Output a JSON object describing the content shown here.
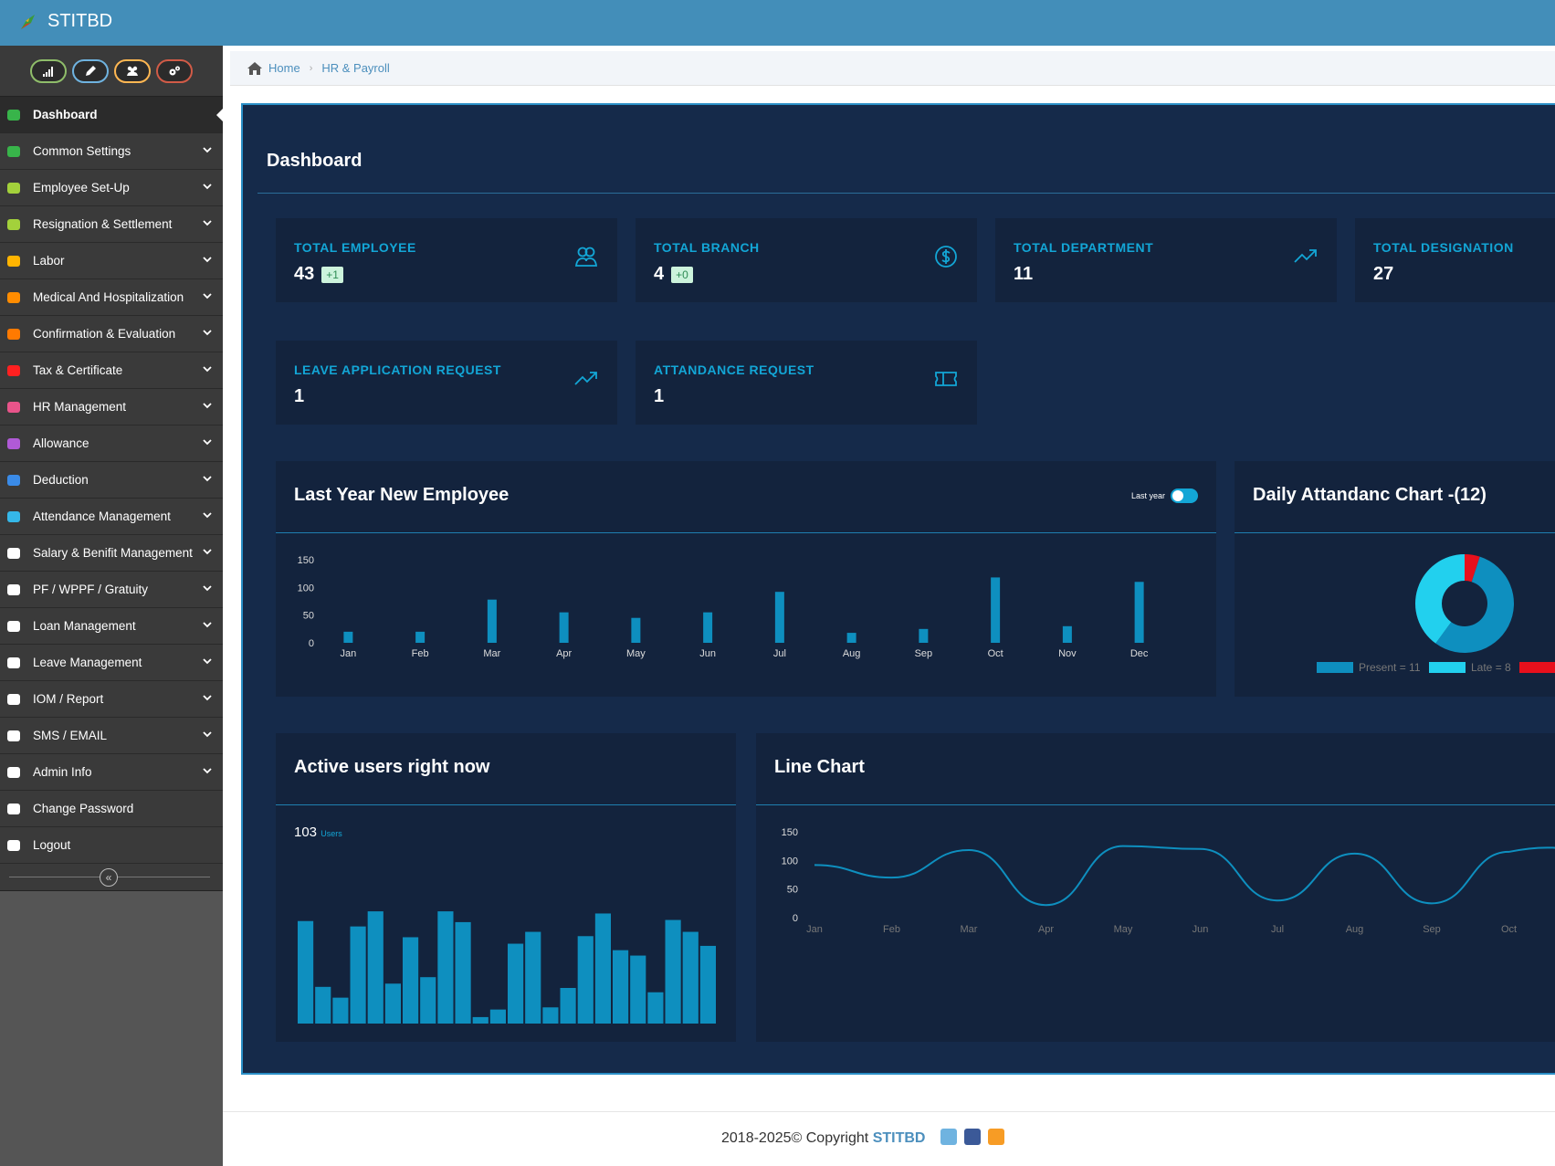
{
  "app": {
    "title": "STITBD"
  },
  "shortcuts": [
    {
      "icon": "signal-icon",
      "color": "#8fbd6a"
    },
    {
      "icon": "pencil-icon",
      "color": "#6fb3e0"
    },
    {
      "icon": "users-icon",
      "color": "#ffb752"
    },
    {
      "icon": "cogs-icon",
      "color": "#d15b47"
    }
  ],
  "sidebar": {
    "items": [
      {
        "label": "Dashboard",
        "icon": "tachometer-icon",
        "color": "#38b44a",
        "active": true,
        "has_caret": false
      },
      {
        "label": "Common Settings",
        "icon": "cogs-icon",
        "color": "#38b44a",
        "has_caret": true
      },
      {
        "label": "Employee Set-Up",
        "icon": "users-icon",
        "color": "#a3d13b",
        "has_caret": true
      },
      {
        "label": "Resignation & Settlement",
        "icon": "users-icon",
        "color": "#a3d13b",
        "has_caret": true
      },
      {
        "label": "Labor",
        "icon": "users-icon",
        "color": "#ffb400",
        "has_caret": true
      },
      {
        "label": "Medical And Hospitalization",
        "icon": "medkit-icon",
        "color": "#ff8c00",
        "has_caret": true
      },
      {
        "label": "Confirmation & Evaluation",
        "icon": "refresh-icon",
        "color": "#ff7a00",
        "has_caret": true
      },
      {
        "label": "Tax & Certificate",
        "icon": "certificate-icon",
        "color": "#ff2020",
        "has_caret": true
      },
      {
        "label": "HR Management",
        "icon": "users-icon",
        "color": "#e8548a",
        "has_caret": true
      },
      {
        "label": "Allowance",
        "icon": "plus-square-icon",
        "color": "#b05ad6",
        "has_caret": true
      },
      {
        "label": "Deduction",
        "icon": "minus-square-icon",
        "color": "#3a8be8",
        "has_caret": true
      },
      {
        "label": "Attendance Management",
        "icon": "user-pin-icon",
        "color": "#35b7e8",
        "has_caret": true
      },
      {
        "label": "Salary & Benifit Management",
        "icon": "dollar-icon",
        "color": "#ffffff",
        "has_caret": true
      },
      {
        "label": "PF / WPPF / Gratuity",
        "icon": "users-icon",
        "color": "#ffffff",
        "has_caret": true
      },
      {
        "label": "Loan Management",
        "icon": "money-icon",
        "color": "#ffffff",
        "has_caret": true
      },
      {
        "label": "Leave Management",
        "icon": "plane-icon",
        "color": "#ffffff",
        "has_caret": true
      },
      {
        "label": "IOM / Report",
        "icon": "plane-icon",
        "color": "#ffffff",
        "has_caret": true
      },
      {
        "label": "SMS / EMAIL",
        "icon": "bell-icon",
        "color": "#ffffff",
        "has_caret": true
      },
      {
        "label": "Admin Info",
        "icon": "users-icon",
        "color": "#ffffff",
        "has_caret": true
      },
      {
        "label": "Change Password",
        "icon": "lock-icon",
        "color": "#ffffff",
        "has_caret": false
      },
      {
        "label": "Logout",
        "icon": "image-icon",
        "color": "#ffffff",
        "has_caret": false
      }
    ]
  },
  "breadcrumb": {
    "home": "Home",
    "current": "HR & Payroll"
  },
  "dashboard": {
    "title": "Dashboard",
    "stats": [
      {
        "label": "TOTAL EMPLOYEE",
        "value": "43",
        "badge": "+1",
        "icon": "users-icon"
      },
      {
        "label": "TOTAL BRANCH",
        "value": "4",
        "badge": "+0",
        "icon": "dollar-circle-icon"
      },
      {
        "label": "TOTAL DEPARTMENT",
        "value": "11",
        "badge": "",
        "icon": "trending-up-icon"
      },
      {
        "label": "TOTAL DESIGNATION",
        "value": "27",
        "badge": "",
        "icon": "trending-up-icon"
      },
      {
        "label": "LEAVE APPLICATION REQUEST",
        "value": "1",
        "badge": "",
        "icon": "trending-up-icon"
      },
      {
        "label": "ATTANDANCE REQUEST",
        "value": "1",
        "badge": "",
        "icon": "ticket-icon"
      }
    ]
  },
  "panels": {
    "new_employee": {
      "title": "Last Year New Employee",
      "toggle_label": "Last year"
    },
    "daily_attendance": {
      "title": "Daily Attandanc Chart -(12)"
    },
    "active_users": {
      "title": "Active users right now",
      "count": "103",
      "unit": "Users"
    },
    "line_chart": {
      "title": "Line Chart"
    }
  },
  "chart_data": [
    {
      "type": "bar",
      "categories": [
        "Jan",
        "Feb",
        "Mar",
        "Apr",
        "May",
        "Jun",
        "Jul",
        "Aug",
        "Sep",
        "Oct",
        "Nov",
        "Dec"
      ],
      "values": [
        20,
        20,
        78,
        55,
        45,
        55,
        92,
        18,
        25,
        118,
        30,
        110
      ],
      "ylim": [
        0,
        150
      ],
      "yticks": [
        0,
        50,
        100,
        150
      ],
      "color": "#0e8fbf"
    },
    {
      "type": "pie",
      "labels": [
        "Present = 11",
        "Late = 8",
        ""
      ],
      "values": [
        11,
        8,
        1
      ],
      "colors": [
        "#0e8fbf",
        "#22d0ee",
        "#e8101c"
      ],
      "donut": true
    },
    {
      "type": "bar",
      "values": [
        95,
        34,
        24,
        90,
        104,
        37,
        80,
        43,
        104,
        94,
        6,
        13,
        74,
        85,
        15,
        33,
        81,
        102,
        68,
        63,
        29,
        96,
        85,
        72
      ],
      "ylim": [
        0,
        110
      ],
      "axes": false,
      "color": "#0e8fbf"
    },
    {
      "type": "line",
      "categories": [
        "Jan",
        "Feb",
        "Mar",
        "Apr",
        "May",
        "Jun",
        "Jul",
        "Aug",
        "Sep",
        "Oct"
      ],
      "values": [
        92,
        70,
        118,
        22,
        125,
        120,
        30,
        112,
        25,
        115
      ],
      "ylim": [
        0,
        150
      ],
      "yticks": [
        0,
        50,
        100,
        150
      ],
      "color": "#0e8fbf"
    }
  ],
  "footer": {
    "text": "2018-2025© Copyright",
    "brand": "STITBD"
  }
}
